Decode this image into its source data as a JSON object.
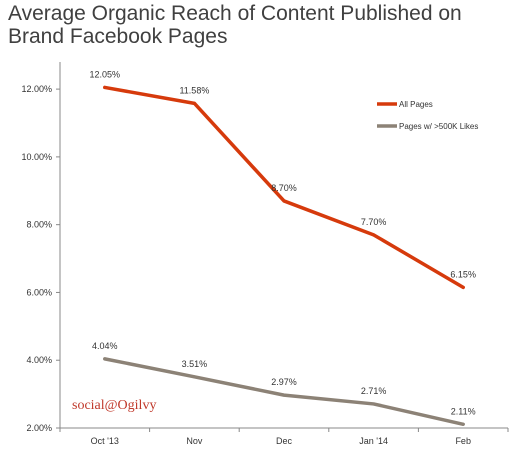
{
  "title_lines": [
    "Average Organic Reach of Content Published on",
    "Brand Facebook Pages"
  ],
  "brand": "social@Ogilvy",
  "colors": {
    "all_pages": "#d63a0c",
    "large_pages": "#8c8276",
    "axis": "#888888",
    "brand": "#c0392b"
  },
  "chart_data": {
    "type": "line",
    "title": "Average Organic Reach of Content Published on Brand Facebook Pages",
    "categories": [
      "Oct '13",
      "Nov",
      "Dec",
      "Jan '14",
      "Feb"
    ],
    "y_ticks": [
      "2.00%",
      "4.00%",
      "6.00%",
      "8.00%",
      "10.00%",
      "12.00%"
    ],
    "ylim": [
      2,
      12.8
    ],
    "grid": false,
    "legend_position": "top-right",
    "series": [
      {
        "name": "All Pages",
        "values": [
          12.05,
          11.58,
          8.7,
          7.7,
          6.15
        ],
        "labels": [
          "12.05%",
          "11.58%",
          "8.70%",
          "7.70%",
          "6.15%"
        ],
        "color": "#d63a0c"
      },
      {
        "name": "Pages w/ >500K Likes",
        "values": [
          4.04,
          3.51,
          2.97,
          2.71,
          2.11
        ],
        "labels": [
          "4.04%",
          "3.51%",
          "2.97%",
          "2.71%",
          "2.11%"
        ],
        "color": "#8c8276"
      }
    ]
  }
}
